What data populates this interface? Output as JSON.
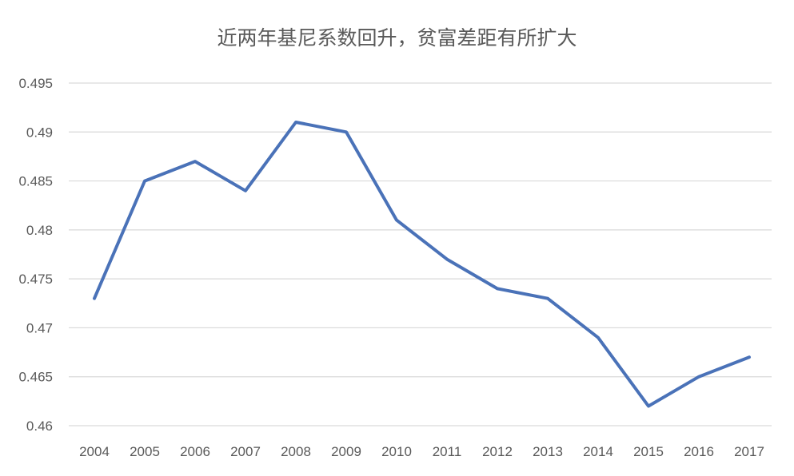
{
  "chart_data": {
    "type": "line",
    "title": "近两年基尼系数回升，贫富差距有所扩大",
    "xlabel": "",
    "ylabel": "",
    "categories": [
      "2004",
      "2005",
      "2006",
      "2007",
      "2008",
      "2009",
      "2010",
      "2011",
      "2012",
      "2013",
      "2014",
      "2015",
      "2016",
      "2017"
    ],
    "series": [
      {
        "values": [
          0.473,
          0.485,
          0.487,
          0.484,
          0.491,
          0.49,
          0.481,
          0.477,
          0.474,
          0.473,
          0.469,
          0.462,
          0.465,
          0.467
        ]
      }
    ],
    "ylim": [
      0.46,
      0.495
    ],
    "yticks": [
      "0.46",
      "0.465",
      "0.47",
      "0.475",
      "0.48",
      "0.485",
      "0.49",
      "0.495"
    ],
    "grid": "horizontal",
    "legend": "none",
    "colors": {
      "line": "#4a72b8",
      "grid": "#d9d9d9",
      "text": "#595959"
    }
  }
}
